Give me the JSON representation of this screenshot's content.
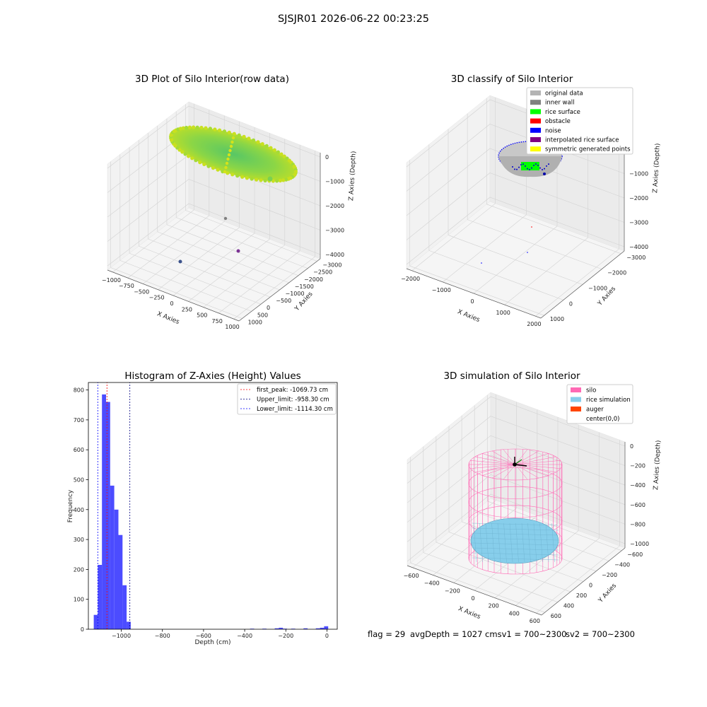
{
  "figure": {
    "suptitle": "SJSJR01 2026-06-22 00:23:25",
    "footer": {
      "flag": "flag = 29",
      "avg": "avgDepth = 1027 cmsv1 = 700~2300",
      "sv2": "sv2 = 700~2300"
    }
  },
  "colors": {
    "silo": "#ff69b4",
    "rice": "#87ceeb",
    "hist": "#0000ff",
    "peak_line": "#ff0000",
    "upper_line": "#000080",
    "lower_line": "#0000ff"
  },
  "chart_data": [
    {
      "type": "scatter",
      "title": "3D Plot of Silo Interior(row data)",
      "projection": "3d",
      "xlabel": "X Axies",
      "ylabel": "Y Axies",
      "zlabel": "Z Axies (Depth)",
      "xticks": [
        "−1000",
        "−750",
        "−500",
        "−250",
        "0",
        "250",
        "500",
        "750",
        "1000"
      ],
      "yticks": [
        "1000",
        "500",
        "0",
        "−500",
        "−1000",
        "−1500",
        "−2000",
        "−2500",
        "−3000"
      ],
      "zticks": [
        "0",
        "−1000",
        "−2000",
        "−3000",
        "−4000"
      ],
      "xlim": [
        -1050,
        1050
      ],
      "ylim": [
        -3050,
        1100
      ],
      "zlim": [
        -4300,
        100
      ],
      "series": [
        {
          "description_color": "viridis-yellow-green",
          "points": [
            [
              -900,
              300,
              -1000
            ],
            [
              0,
              0,
              -1050
            ],
            [
              900,
              -300,
              -1100
            ],
            [
              100,
              -100,
              -1030
            ]
          ]
        }
      ],
      "outliers": [
        [
          0,
          -1500,
          -3800
        ],
        [
          -600,
          800,
          -4300
        ],
        [
          500,
          -1600,
          -4400
        ]
      ]
    },
    {
      "type": "scatter",
      "title": "3D classify of Silo Interior",
      "projection": "3d",
      "xlabel": "X Axies",
      "ylabel": "Y Axies",
      "zlabel": "Z Axies (Depth)",
      "xticks": [
        "−2000",
        "−1000",
        "0",
        "1000",
        "2000"
      ],
      "yticks": [
        "1000",
        "0",
        "−1000",
        "−2000",
        "−3000"
      ],
      "zticks": [
        "0",
        "−1000",
        "−2000",
        "−3000",
        "−4000"
      ],
      "legend": [
        {
          "label": "original data",
          "color": "#b4b4b4"
        },
        {
          "label": "inner wall",
          "color": "#808080"
        },
        {
          "label": "rice surface",
          "color": "#00ff00"
        },
        {
          "label": "obstacle",
          "color": "#ff0000"
        },
        {
          "label": "noise",
          "color": "#0000ff"
        },
        {
          "label": "interpolated rice surface",
          "color": "#800080"
        },
        {
          "label": "symmetric generated points",
          "color": "#ffff00"
        }
      ]
    },
    {
      "type": "bar",
      "title": "Histogram of Z-Axies (Height) Values",
      "xlabel": "Depth (cm)",
      "ylabel": "Frequency",
      "xlim": [
        -1160,
        50
      ],
      "ylim": [
        0,
        825
      ],
      "xticks": [
        -1000,
        -800,
        -600,
        -400,
        -200,
        0
      ],
      "xtick_labels": [
        "−1000",
        "−800",
        "−600",
        "−400",
        "−200",
        "0"
      ],
      "yticks": [
        0,
        100,
        200,
        300,
        400,
        500,
        600,
        700,
        800
      ],
      "bin_width": 20,
      "bins": [
        {
          "x0": -1134,
          "value": 48
        },
        {
          "x0": -1114,
          "value": 215
        },
        {
          "x0": -1094,
          "value": 785
        },
        {
          "x0": -1074,
          "value": 760
        },
        {
          "x0": -1054,
          "value": 480
        },
        {
          "x0": -1034,
          "value": 400
        },
        {
          "x0": -1014,
          "value": 315
        },
        {
          "x0": -994,
          "value": 147
        },
        {
          "x0": -974,
          "value": 25
        },
        {
          "x0": -374,
          "value": 2
        },
        {
          "x0": -314,
          "value": 2
        },
        {
          "x0": -254,
          "value": 3
        },
        {
          "x0": -234,
          "value": 5
        },
        {
          "x0": -214,
          "value": 2
        },
        {
          "x0": -174,
          "value": 2
        },
        {
          "x0": -114,
          "value": 3
        },
        {
          "x0": -54,
          "value": 3
        },
        {
          "x0": -34,
          "value": 5
        },
        {
          "x0": -14,
          "value": 10
        }
      ],
      "lines": [
        {
          "name": "first_peak: -1069.73 cm",
          "x": -1069.73,
          "color": "#ff0000"
        },
        {
          "name": "Upper_limit: -958.30 cm",
          "x": -958.3,
          "color": "#000080"
        },
        {
          "name": "Lower_limit: -1114.30 cm",
          "x": -1114.3,
          "color": "#0000ff"
        }
      ]
    },
    {
      "type": "scatter",
      "title": "3D simulation of Silo Interior",
      "projection": "3d",
      "xlabel": "X Axies",
      "ylabel": "Y Axies",
      "zlabel": "Z Axies (Depth)",
      "xticks": [
        "−600",
        "−400",
        "−200",
        "0",
        "200",
        "400",
        "600"
      ],
      "yticks": [
        "600",
        "400",
        "200",
        "0",
        "−200",
        "−400",
        "−600"
      ],
      "zticks": [
        "0",
        "−200",
        "−400",
        "−600",
        "−800",
        "−1000"
      ],
      "legend": [
        {
          "label": "silo",
          "color": "#ff69b4"
        },
        {
          "label": "rice simulation",
          "color": "#87ceeb"
        },
        {
          "label": "auger",
          "color": "#ff4500"
        },
        {
          "label": "center(0,0)",
          "color": "none"
        }
      ]
    }
  ]
}
